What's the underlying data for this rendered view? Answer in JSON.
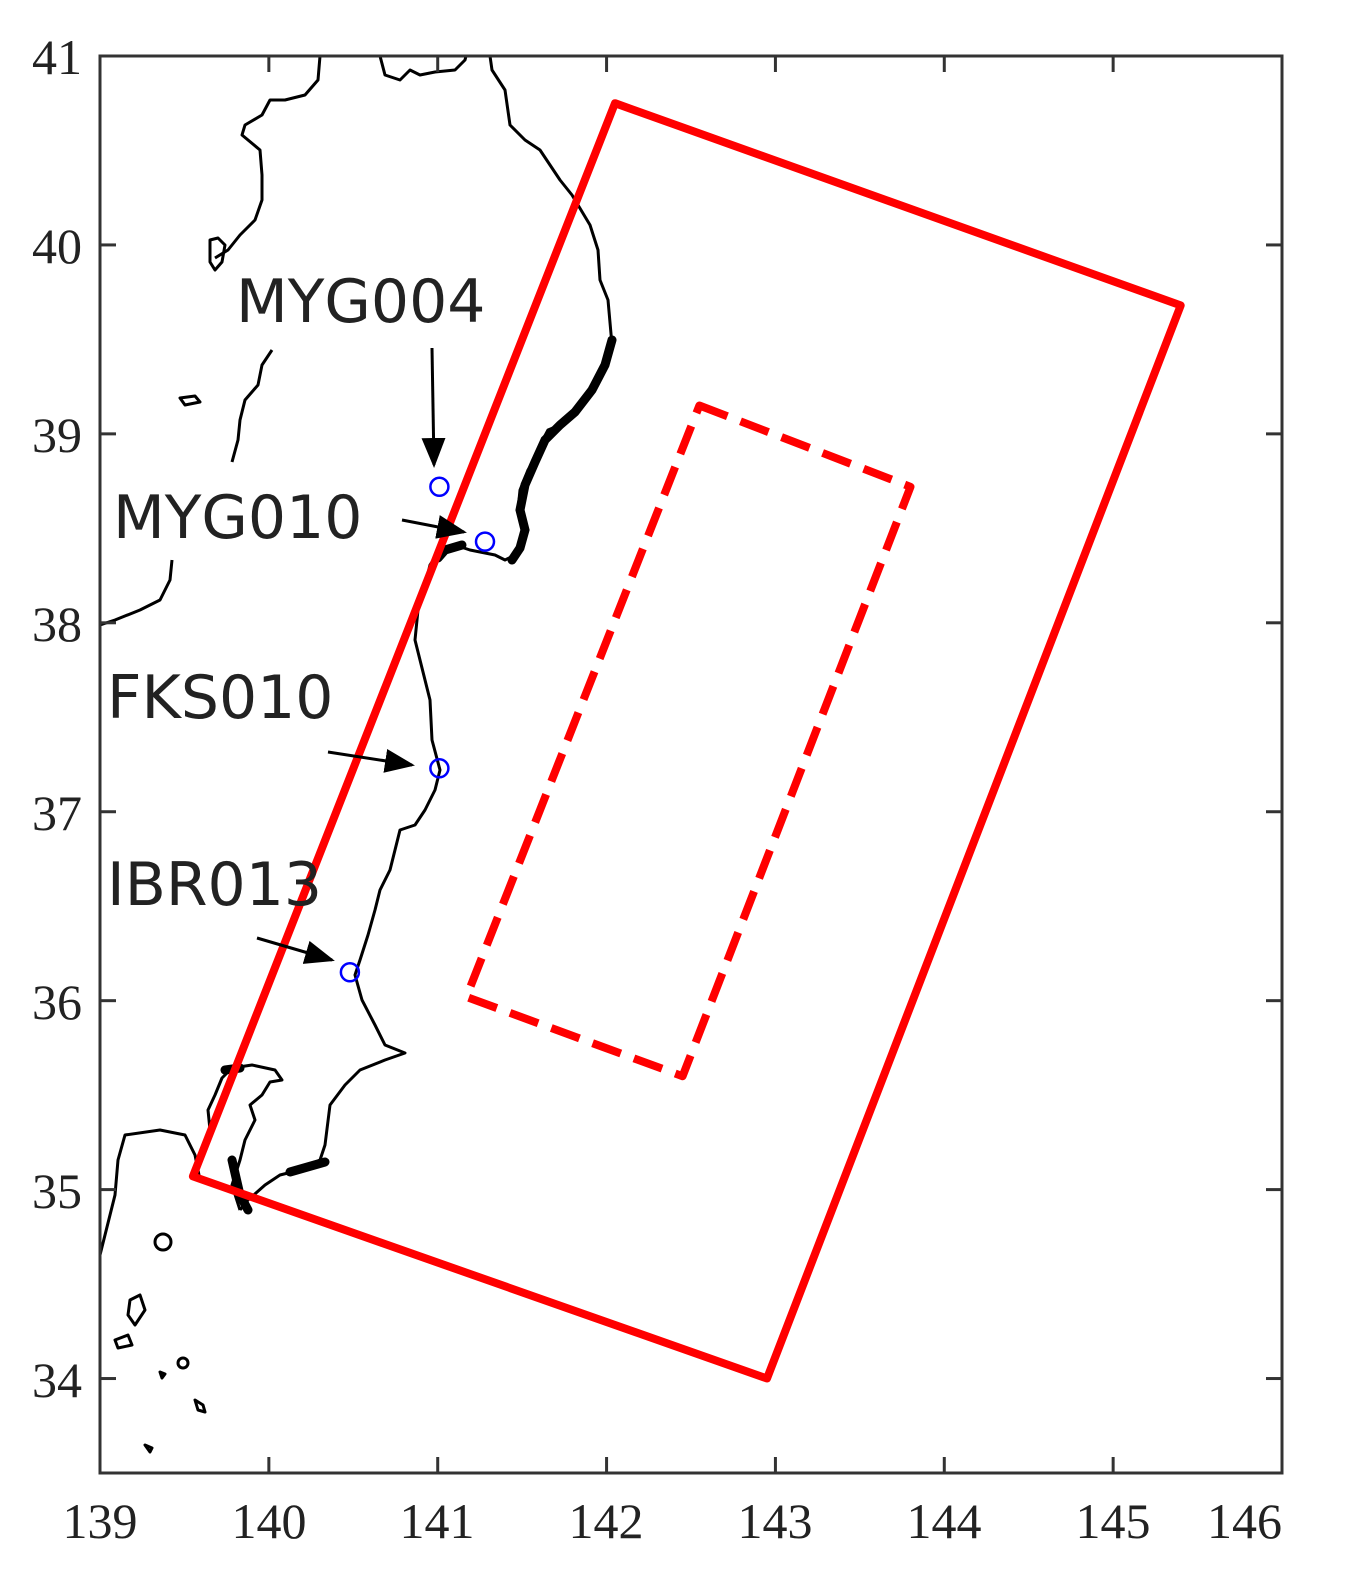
{
  "map": {
    "x_axis": {
      "range": [
        139,
        146
      ],
      "ticks": [
        "139",
        "140",
        "141",
        "142",
        "143",
        "144",
        "145",
        "146"
      ]
    },
    "y_axis": {
      "range": [
        33.5,
        41
      ],
      "ticks": [
        "34",
        "35",
        "36",
        "37",
        "38",
        "39",
        "40",
        "41"
      ]
    },
    "rectangles": [
      {
        "style": "solid",
        "color": "#ff0000",
        "corners": [
          [
            142.05,
            40.75
          ],
          [
            145.4,
            39.68
          ],
          [
            142.95,
            34.0
          ],
          [
            139.55,
            35.07
          ]
        ]
      },
      {
        "style": "dashed",
        "color": "#ff0000",
        "corners": [
          [
            142.55,
            39.15
          ],
          [
            143.8,
            38.72
          ],
          [
            142.45,
            35.6
          ],
          [
            141.17,
            36.02
          ]
        ]
      }
    ],
    "stations": [
      {
        "label": "MYG004",
        "lon": 141.01,
        "lat": 38.72,
        "color": "#0000ff"
      },
      {
        "label": "MYG010",
        "lon": 141.28,
        "lat": 38.43,
        "color": "#0000ff"
      },
      {
        "label": "FKS010",
        "lon": 141.01,
        "lat": 37.23,
        "color": "#0000ff"
      },
      {
        "label": "IBR013",
        "lon": 140.48,
        "lat": 36.15,
        "color": "#0000ff"
      }
    ],
    "coastline_color": "#000000"
  }
}
